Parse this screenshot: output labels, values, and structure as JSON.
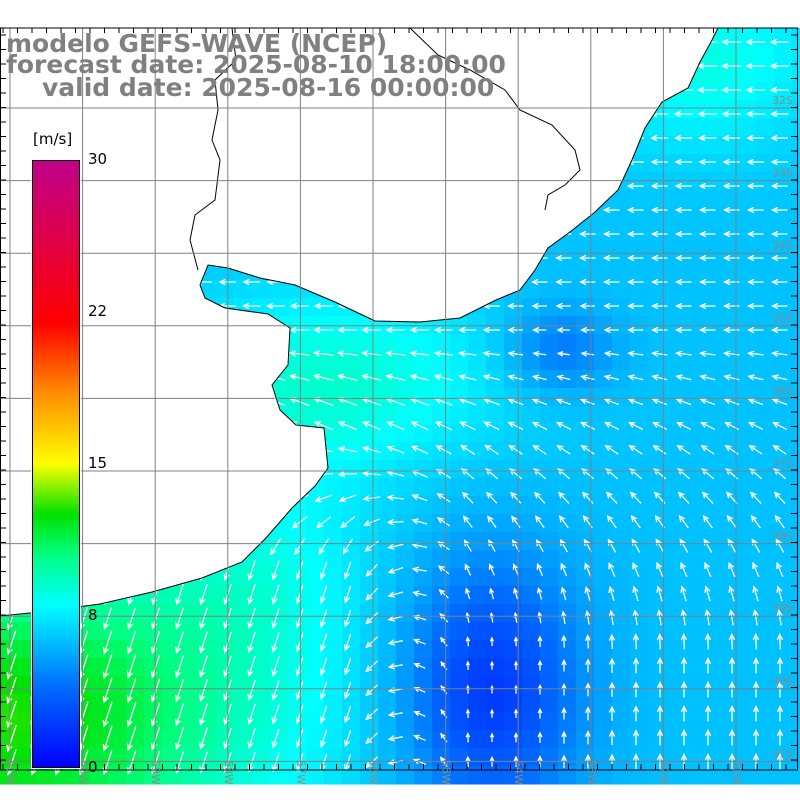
{
  "title": {
    "line1": "modelo GEFS-WAVE (NCEP)",
    "line2": "forecast date: 2025-08-10 18:00:00",
    "line3": "valid date: 2025-08-16 00:00:00"
  },
  "colorbar": {
    "units": "[m/s]",
    "ticks": [
      "30",
      "22",
      "15",
      "8",
      "0"
    ],
    "tick_values": [
      30,
      22,
      15,
      8,
      0
    ],
    "range": [
      0,
      30
    ],
    "colors": [
      "#0000ff",
      "#0080ff",
      "#00ffff",
      "#00ff40",
      "#00e000",
      "#ffff00",
      "#ff8000",
      "#ff0000",
      "#c0008a"
    ]
  },
  "axes": {
    "lon_labels": [
      "61W",
      "60W",
      "59W",
      "58W",
      "57W",
      "56W",
      "55W",
      "54W",
      "53W",
      "52W",
      "51W"
    ],
    "lat_labels": [
      "32S",
      "33S",
      "34S",
      "35S",
      "36S",
      "37S",
      "38S",
      "39S",
      "40S",
      "41S"
    ]
  },
  "colors": {
    "land": "#ffffff",
    "coast": "#000000",
    "grid": "#808080",
    "label": "#8a8a8a",
    "arrow": "#ffffff"
  }
}
